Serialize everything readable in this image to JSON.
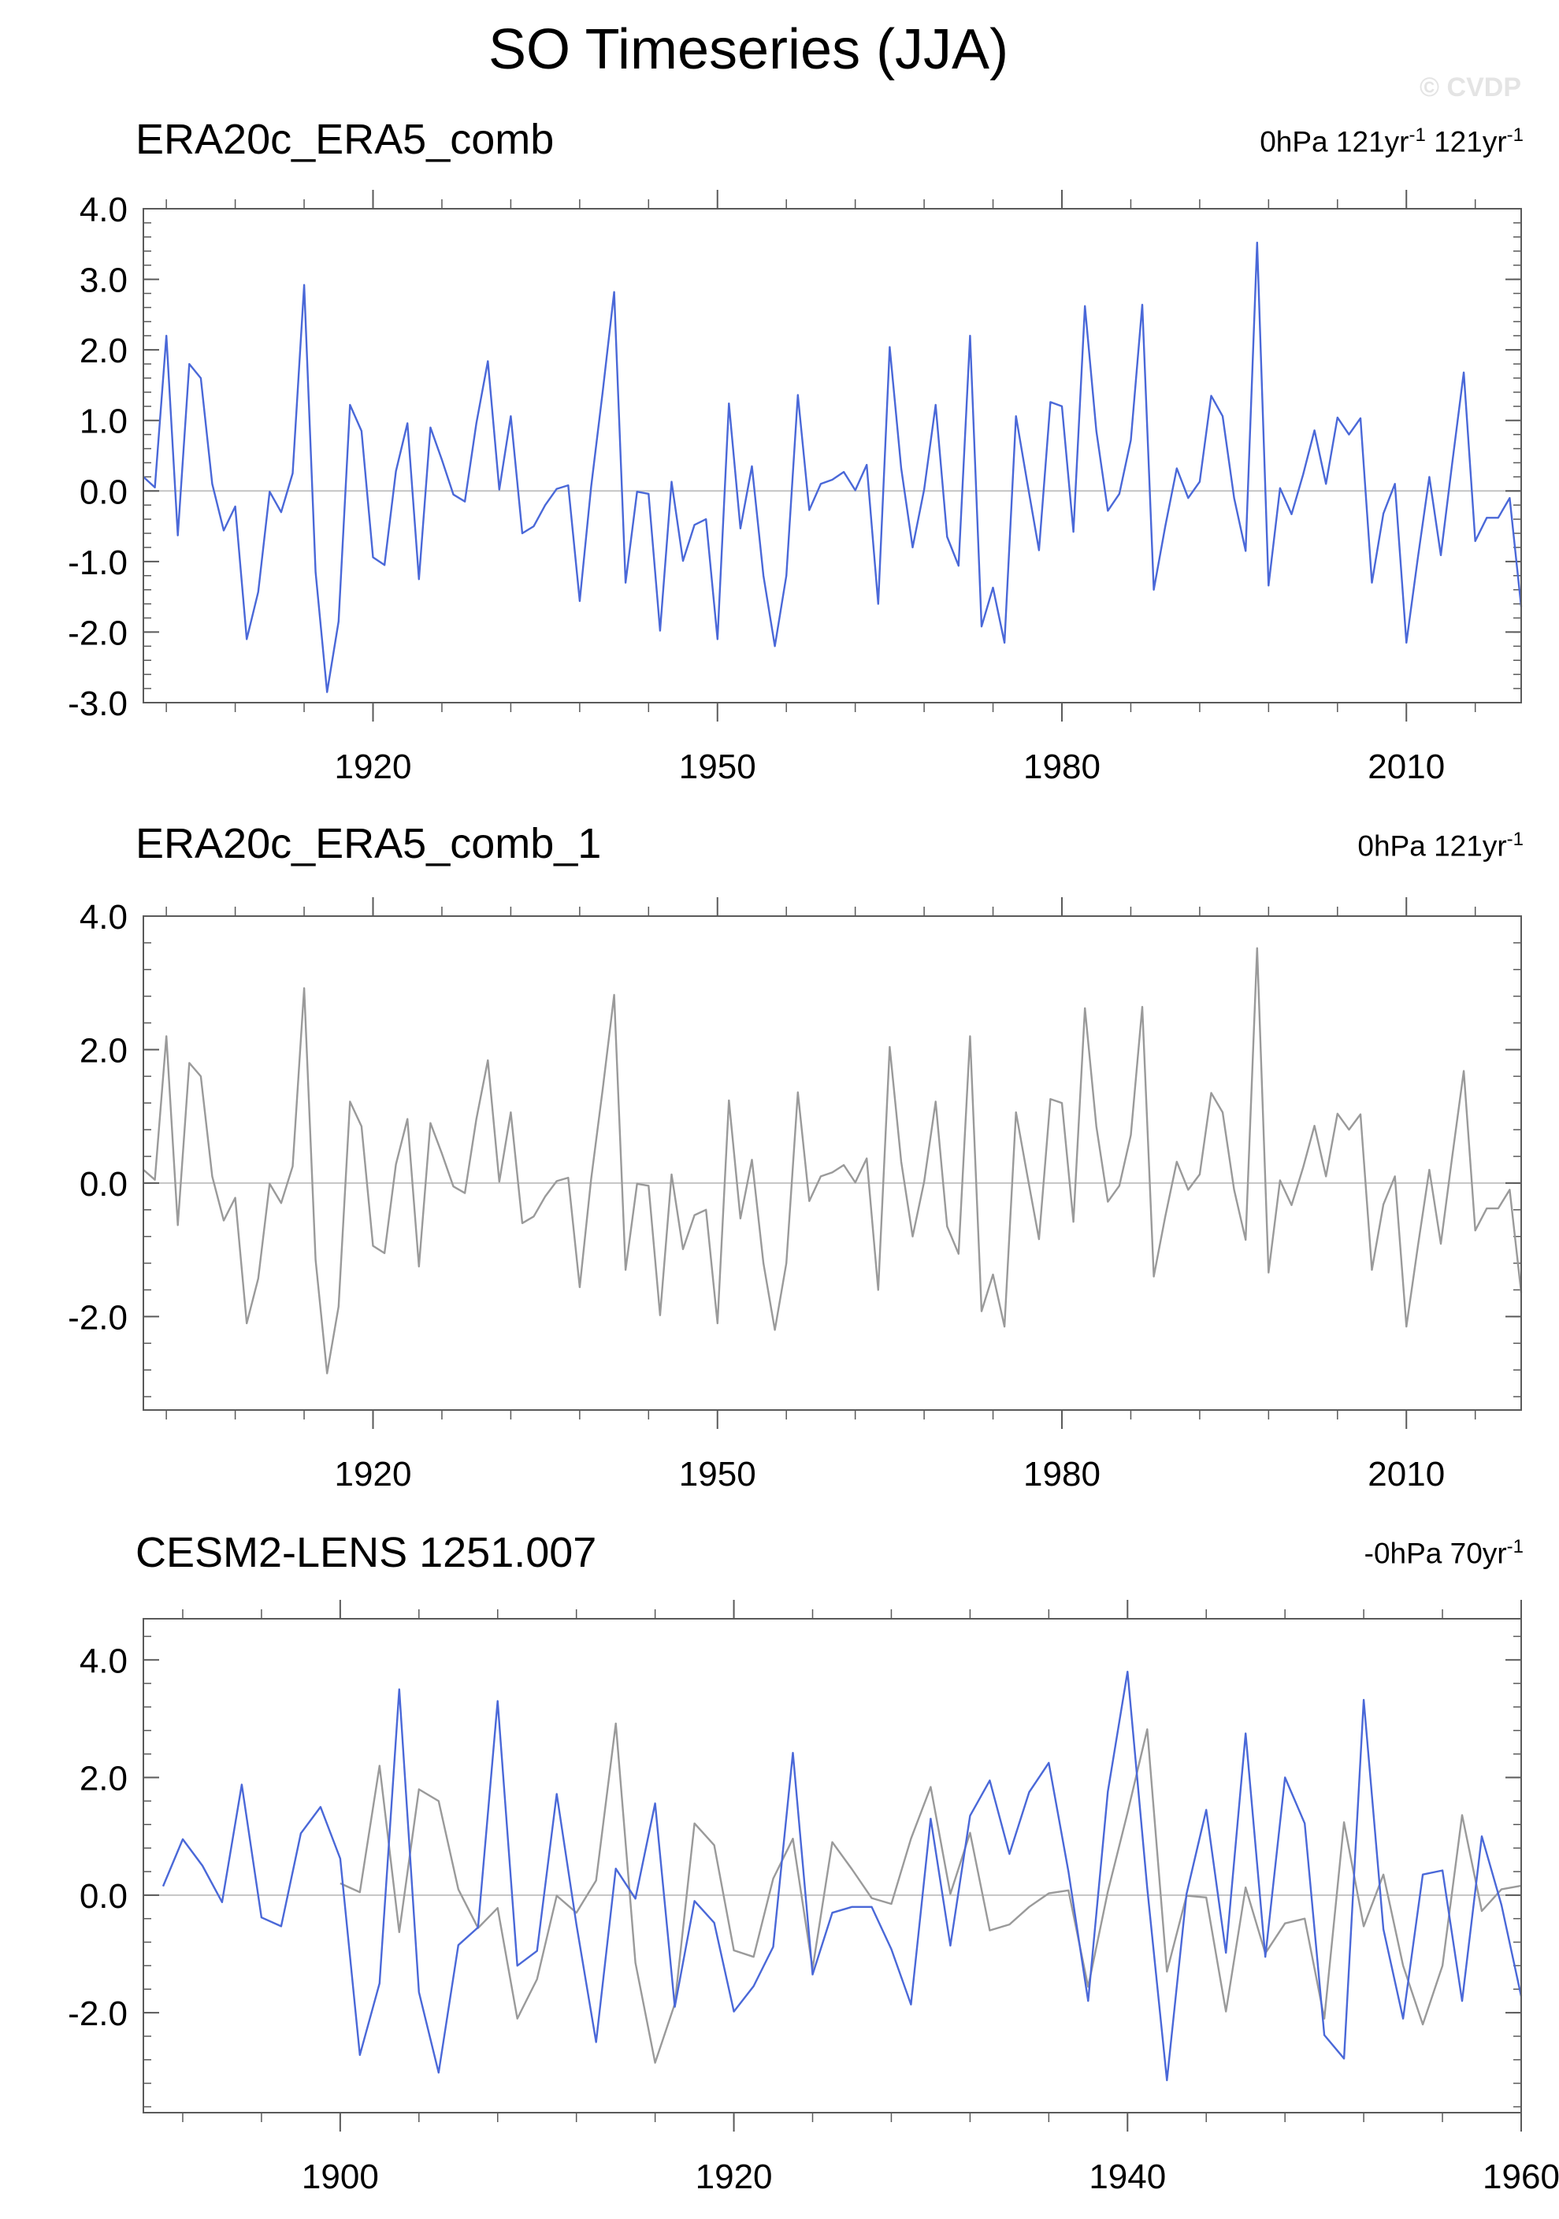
{
  "title": "SO Timeseries (JJA)",
  "watermark": "© CVDP",
  "colors": {
    "obs": "#4a68d8",
    "obs_gray": "#9a9a9a",
    "zero_line": "#c4c4c4",
    "frame": "#5a5a5a"
  },
  "panels": [
    {
      "title": "ERA20c_ERA5_comb",
      "stats_parts": [
        "0hPa 121yr",
        "-1",
        " 121yr",
        "-1"
      ]
    },
    {
      "title": "ERA20c_ERA5_comb_1",
      "stats_parts": [
        "0hPa 121yr",
        "-1"
      ]
    },
    {
      "title": "CESM2-LENS 1251.007",
      "stats_parts": [
        "-0hPa 70yr",
        "-1"
      ]
    }
  ],
  "chart_data": [
    {
      "type": "line",
      "title": "ERA20c_ERA5_comb",
      "xlim": [
        1900,
        2020
      ],
      "ylim": [
        -3,
        4
      ],
      "yticks": [
        -3,
        -2,
        -1,
        0,
        1,
        2,
        3,
        4
      ],
      "ytick_labels": [
        "-3.0",
        "-2.0",
        "-1.0",
        "0.0",
        "1.0",
        "2.0",
        "3.0",
        "4.0"
      ],
      "xticks": [
        1920,
        1950,
        1980,
        2010
      ],
      "xtick_labels": [
        "1920",
        "1950",
        "1980",
        "2010"
      ],
      "zero_line": true,
      "series": [
        {
          "color": "#4a68d8",
          "x_start": 1900,
          "values": [
            0.2,
            0.05,
            2.2,
            -0.63,
            1.8,
            1.6,
            0.1,
            -0.56,
            -0.22,
            -2.1,
            -1.43,
            -0.01,
            -0.3,
            0.25,
            2.92,
            -1.15,
            -2.85,
            -1.85,
            1.22,
            0.85,
            -0.94,
            -1.05,
            0.28,
            0.96,
            -1.25,
            0.9,
            0.44,
            -0.05,
            -0.15,
            0.96,
            1.84,
            0.02,
            1.06,
            -0.6,
            -0.5,
            -0.2,
            0.03,
            0.08,
            -1.56,
            0.06,
            1.4,
            2.82,
            -1.3,
            -0.01,
            -0.04,
            -1.98,
            0.13,
            -0.99,
            -0.48,
            -0.4,
            -2.1,
            1.24,
            -0.53,
            0.35,
            -1.2,
            -2.2,
            -1.2,
            1.36,
            -0.27,
            0.1,
            0.16,
            0.27,
            0.01,
            0.37,
            -1.6,
            2.04,
            0.32,
            -0.8,
            0.02,
            1.22,
            -0.65,
            -1.06,
            2.2,
            -1.92,
            -1.37,
            -2.15,
            1.06,
            0.1,
            -0.84,
            1.26,
            1.2,
            -0.58,
            2.62,
            0.85,
            -0.28,
            -0.04,
            0.72,
            2.64,
            -1.4,
            -0.5,
            0.32,
            -0.1,
            0.13,
            1.35,
            1.06,
            -0.1,
            -0.85,
            3.52,
            -1.34,
            0.04,
            -0.33,
            0.23,
            0.86,
            0.1,
            1.04,
            0.8,
            1.03,
            -1.3,
            -0.32,
            0.1,
            -2.15,
            -0.95,
            0.2,
            -0.91,
            0.4,
            1.68,
            -0.71,
            -0.38,
            -0.38,
            -0.1,
            -1.64
          ]
        }
      ]
    },
    {
      "type": "line",
      "title": "ERA20c_ERA5_comb_1",
      "xlim": [
        1900,
        2020
      ],
      "ylim": [
        -3.4,
        4.0
      ],
      "yticks": [
        -2,
        0,
        2,
        4
      ],
      "ytick_labels": [
        "-2.0",
        "0.0",
        "2.0",
        "4.0"
      ],
      "xticks": [
        1920,
        1950,
        1980,
        2010
      ],
      "xtick_labels": [
        "1920",
        "1950",
        "1980",
        "2010"
      ],
      "zero_line": true,
      "series": [
        {
          "color": "#9a9a9a",
          "x_start": 1900,
          "values": [
            0.2,
            0.05,
            2.2,
            -0.63,
            1.8,
            1.6,
            0.1,
            -0.56,
            -0.22,
            -2.1,
            -1.43,
            -0.01,
            -0.3,
            0.25,
            2.92,
            -1.15,
            -2.85,
            -1.85,
            1.22,
            0.85,
            -0.94,
            -1.05,
            0.28,
            0.96,
            -1.25,
            0.9,
            0.44,
            -0.05,
            -0.15,
            0.96,
            1.84,
            0.02,
            1.06,
            -0.6,
            -0.5,
            -0.2,
            0.03,
            0.08,
            -1.56,
            0.06,
            1.4,
            2.82,
            -1.3,
            -0.01,
            -0.04,
            -1.98,
            0.13,
            -0.99,
            -0.48,
            -0.4,
            -2.1,
            1.24,
            -0.53,
            0.35,
            -1.2,
            -2.2,
            -1.2,
            1.36,
            -0.27,
            0.1,
            0.16,
            0.27,
            0.01,
            0.37,
            -1.6,
            2.04,
            0.32,
            -0.8,
            0.02,
            1.22,
            -0.65,
            -1.06,
            2.2,
            -1.92,
            -1.37,
            -2.15,
            1.06,
            0.1,
            -0.84,
            1.26,
            1.2,
            -0.58,
            2.62,
            0.85,
            -0.28,
            -0.04,
            0.72,
            2.64,
            -1.4,
            -0.5,
            0.32,
            -0.1,
            0.13,
            1.35,
            1.06,
            -0.1,
            -0.85,
            3.52,
            -1.34,
            0.04,
            -0.33,
            0.23,
            0.86,
            0.1,
            1.04,
            0.8,
            1.03,
            -1.3,
            -0.32,
            0.1,
            -2.15,
            -0.95,
            0.2,
            -0.91,
            0.4,
            1.68,
            -0.71,
            -0.38,
            -0.38,
            -0.1,
            -1.64
          ]
        }
      ]
    },
    {
      "type": "line",
      "title": "CESM2-LENS 1251.007",
      "xlim": [
        1890,
        1960
      ],
      "ylim": [
        -3.7,
        4.7
      ],
      "yticks": [
        -2,
        0,
        2,
        4
      ],
      "ytick_labels": [
        "-2.0",
        "0.0",
        "2.0",
        "4.0"
      ],
      "xticks": [
        1900,
        1920,
        1940,
        1960
      ],
      "xtick_labels": [
        "1900",
        "1920",
        "1940",
        "1960"
      ],
      "zero_line": true,
      "series": [
        {
          "color": "#9a9a9a",
          "x_start": 1900,
          "values": [
            0.2,
            0.05,
            2.2,
            -0.63,
            1.8,
            1.6,
            0.1,
            -0.56,
            -0.22,
            -2.1,
            -1.43,
            -0.01,
            -0.3,
            0.25,
            2.92,
            -1.15,
            -2.85,
            -1.85,
            1.22,
            0.85,
            -0.94,
            -1.05,
            0.28,
            0.96,
            -1.25,
            0.9,
            0.44,
            -0.05,
            -0.15,
            0.96,
            1.84,
            0.02,
            1.06,
            -0.6,
            -0.5,
            -0.2,
            0.03,
            0.08,
            -1.56,
            0.06,
            1.4,
            2.82,
            -1.3,
            -0.01,
            -0.04,
            -1.98,
            0.13,
            -0.99,
            -0.48,
            -0.4,
            -2.1,
            1.24,
            -0.53,
            0.35,
            -1.2,
            -2.2,
            -1.2,
            1.36,
            -0.27,
            0.1,
            0.16
          ]
        },
        {
          "color": "#4a68d8",
          "x_start": 1891,
          "values": [
            0.15,
            0.95,
            0.5,
            -0.12,
            1.88,
            -0.38,
            -0.53,
            1.05,
            1.5,
            0.62,
            -2.72,
            -1.5,
            3.5,
            -1.65,
            -3.02,
            -0.85,
            -0.55,
            3.3,
            -1.2,
            -0.95,
            1.72,
            -0.5,
            -2.5,
            0.45,
            -0.06,
            1.56,
            -1.9,
            -0.1,
            -0.47,
            -1.98,
            -1.55,
            -0.88,
            2.42,
            -1.35,
            -0.3,
            -0.2,
            -0.2,
            -0.92,
            -1.86,
            1.3,
            -0.86,
            1.35,
            1.95,
            0.7,
            1.75,
            2.25,
            0.4,
            -1.8,
            1.76,
            3.8,
            0.12,
            -3.15,
            0.02,
            1.45,
            -0.98,
            2.75,
            -1.05,
            2.0,
            1.22,
            -2.38,
            -2.78,
            3.32,
            -0.58,
            -2.1,
            0.35,
            0.42,
            -1.8,
            1.0,
            -0.17,
            -1.72
          ]
        }
      ]
    }
  ]
}
